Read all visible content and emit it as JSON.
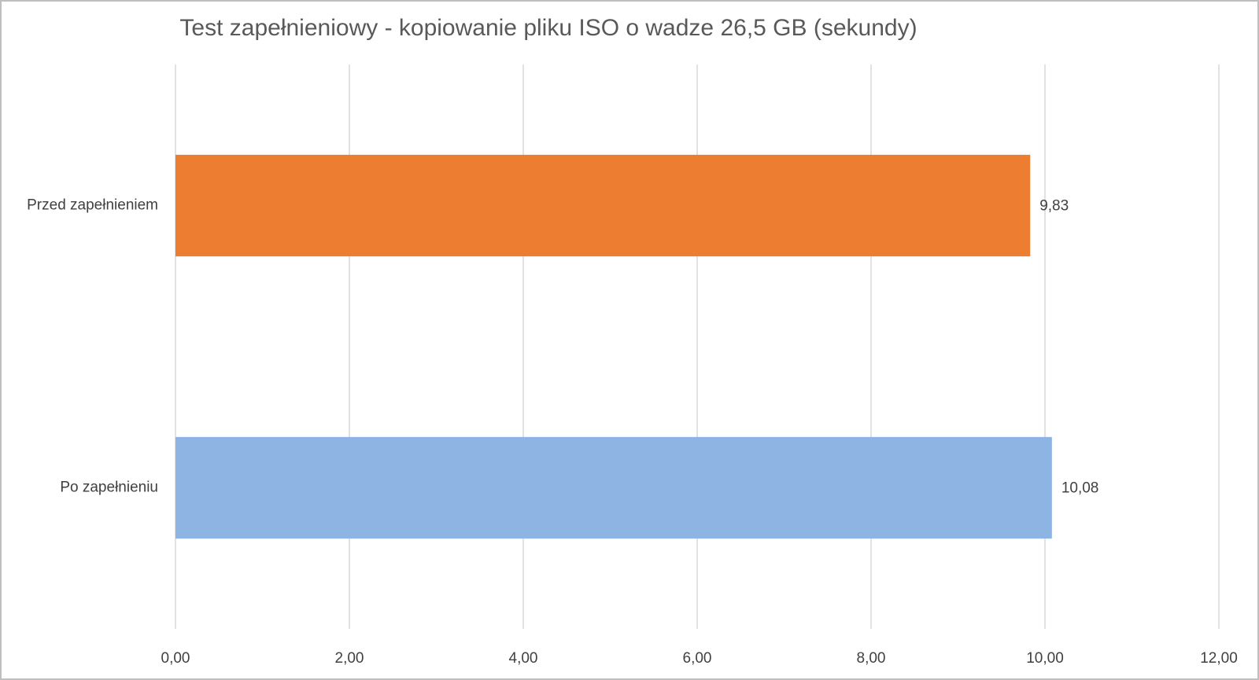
{
  "chart_data": {
    "type": "hbar",
    "title": "Test zapełnieniowy - kopiowanie pliku ISO o wadze 26,5 GB (sekundy)",
    "categories": [
      "Przed zapełnieniem",
      "Po zapełnieniu"
    ],
    "values": [
      9.83,
      10.08
    ],
    "value_labels": [
      "9,83",
      "10,08"
    ],
    "colors": [
      "#ed7d31",
      "#8eb4e3"
    ],
    "xlim": [
      0,
      12
    ],
    "xticks": [
      {
        "value": 0,
        "label": "0,00"
      },
      {
        "value": 2,
        "label": "2,00"
      },
      {
        "value": 4,
        "label": "4,00"
      },
      {
        "value": 6,
        "label": "6,00"
      },
      {
        "value": 8,
        "label": "8,00"
      },
      {
        "value": 10,
        "label": "10,00"
      },
      {
        "value": 12,
        "label": "12,00"
      }
    ],
    "grid": true
  }
}
